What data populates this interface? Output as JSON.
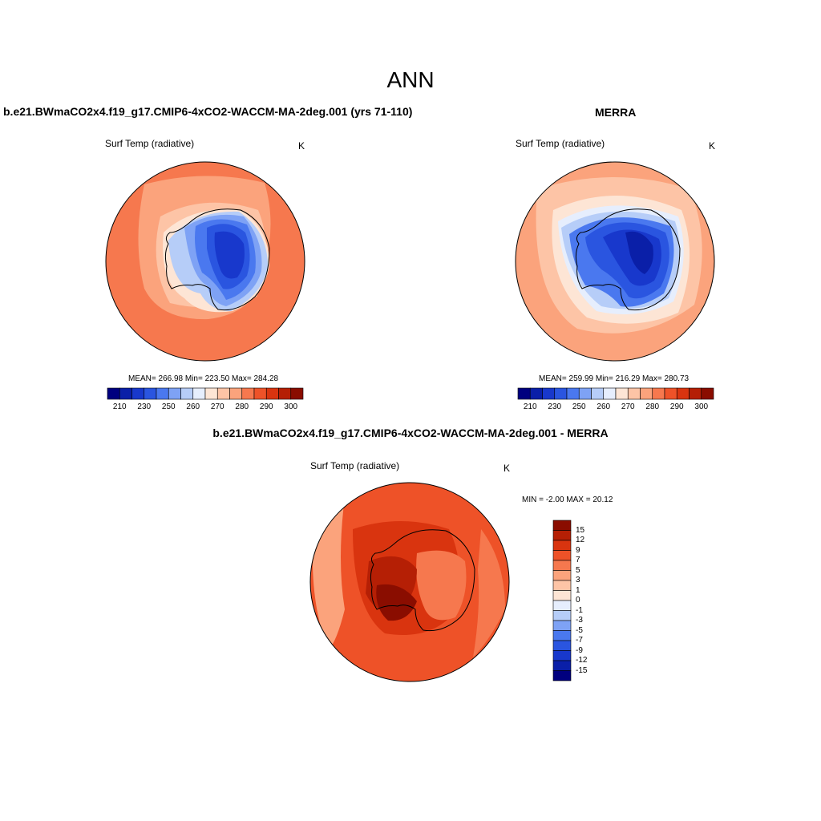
{
  "page": {
    "title": "ANN"
  },
  "panels": [
    {
      "title": "b.e21.BWmaCO2x4.f19_g17.CMIP6-4xCO2-WACCM-MA-2deg.001 (yrs 71-110)",
      "variable": "Surf Temp (radiative)",
      "units": "K",
      "stats": "MEAN= 266.98  Min= 223.50  Max= 284.28"
    },
    {
      "title": "MERRA",
      "variable": "Surf Temp (radiative)",
      "units": "K",
      "stats": "MEAN= 259.99  Min= 216.29  Max= 280.73"
    },
    {
      "title": "b.e21.BWmaCO2x4.f19_g17.CMIP6-4xCO2-WACCM-MA-2deg.001 - MERRA",
      "variable": "Surf Temp (radiative)",
      "units": "K",
      "stats": "MIN =  -2.00 MAX =  20.12"
    }
  ],
  "colorbar_abs": {
    "ticks": [
      "210",
      "230",
      "250",
      "260",
      "270",
      "280",
      "290",
      "300"
    ],
    "colors": [
      "#00007f",
      "#0a1fa8",
      "#1838cc",
      "#2a55e0",
      "#4a78ef",
      "#7ea2f5",
      "#b6cdf8",
      "#e6eefd",
      "#fde5d5",
      "#fdc4a6",
      "#fba37c",
      "#f6784e",
      "#ee5228",
      "#d9340f",
      "#b51f05",
      "#8a0d00"
    ]
  },
  "colorbar_diff": {
    "ticks": [
      "15",
      "12",
      "9",
      "7",
      "5",
      "3",
      "1",
      "0",
      "-1",
      "-3",
      "-5",
      "-7",
      "-9",
      "-12",
      "-15"
    ],
    "colors": [
      "#8a0d00",
      "#b51f05",
      "#d9340f",
      "#ee5228",
      "#f6784e",
      "#fba37c",
      "#fdc4a6",
      "#fde5d5",
      "#e6eefd",
      "#b6cdf8",
      "#7ea2f5",
      "#4a78ef",
      "#2a55e0",
      "#1838cc",
      "#0a1fa8",
      "#00007f"
    ]
  },
  "chart_data": [
    {
      "type": "heatmap",
      "title": "b.e21.BWmaCO2x4.f19_g17.CMIP6-4xCO2-WACCM-MA-2deg.001 (yrs 71-110)",
      "subtitle": "Surf Temp (radiative)",
      "units": "K",
      "projection": "south polar stereographic",
      "mean": 266.98,
      "min": 223.5,
      "max": 284.28,
      "colorbar_range": [
        210,
        300
      ]
    },
    {
      "type": "heatmap",
      "title": "MERRA",
      "subtitle": "Surf Temp (radiative)",
      "units": "K",
      "projection": "south polar stereographic",
      "mean": 259.99,
      "min": 216.29,
      "max": 280.73,
      "colorbar_range": [
        210,
        300
      ]
    },
    {
      "type": "heatmap",
      "title": "b.e21.BWmaCO2x4.f19_g17.CMIP6-4xCO2-WACCM-MA-2deg.001 - MERRA",
      "subtitle": "Surf Temp (radiative)",
      "units": "K",
      "projection": "south polar stereographic",
      "min": -2.0,
      "max": 20.12,
      "colorbar_range": [
        -15,
        15
      ]
    }
  ]
}
